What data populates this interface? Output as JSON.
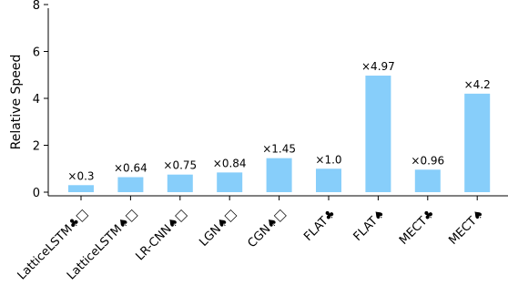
{
  "chart_data": {
    "type": "bar",
    "title": "",
    "xlabel": "",
    "ylabel": "Relative Speed",
    "ylim": [
      0,
      8
    ],
    "yticks": [
      0,
      2,
      4,
      6,
      8
    ],
    "categories": [
      "LatticeLSTM♣□",
      "LatticeLSTM♠□",
      "LR-CNN♠□",
      "LGN♠□",
      "CGN♠□",
      "FLAT♣",
      "FLAT♠",
      "MECT♣",
      "MECT♠"
    ],
    "values": [
      0.3,
      0.64,
      0.75,
      0.84,
      1.45,
      1.0,
      4.97,
      0.96,
      4.2
    ],
    "data_labels": [
      "×0.3",
      "×0.64",
      "×0.75",
      "×0.84",
      "×1.45",
      "×1.0",
      "×4.97",
      "×0.96",
      "×4.2"
    ],
    "bar_color": "#87cefa",
    "grid": false,
    "legend": "none"
  }
}
